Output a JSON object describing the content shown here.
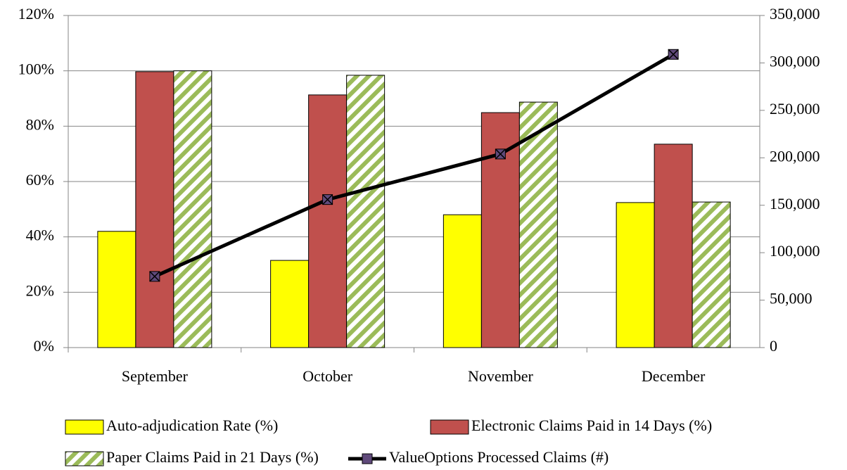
{
  "chart_data": {
    "type": "bar",
    "categories": [
      "September",
      "October",
      "November",
      "December"
    ],
    "series": [
      {
        "name": "Auto-adjudication Rate (%)",
        "type": "bar",
        "color": "#ffff00",
        "values": [
          42,
          31.5,
          48,
          52.4
        ]
      },
      {
        "name": "Electronic Claims Paid in 14 Days (%)",
        "type": "bar",
        "color": "#c0504d",
        "values": [
          99.7,
          91.3,
          84.9,
          73.5
        ]
      },
      {
        "name": "Paper Claims Paid in 21 Days (%)",
        "type": "bar",
        "color": "#9bbb59",
        "pattern": "diagonal-stripes",
        "values": [
          100,
          98.4,
          88.7,
          52.6
        ]
      },
      {
        "name": "ValueOptions Processed Claims (#)",
        "type": "line",
        "axis": "y2",
        "color": "#000000",
        "marker_color": "#604a7b",
        "values": [
          75000,
          156000,
          204000,
          309000
        ]
      }
    ],
    "ylim": [
      0,
      120
    ],
    "yticks": [
      {
        "value": 0,
        "label": "0%"
      },
      {
        "value": 20,
        "label": "20%"
      },
      {
        "value": 40,
        "label": "40%"
      },
      {
        "value": 60,
        "label": "60%"
      },
      {
        "value": 80,
        "label": "80%"
      },
      {
        "value": 100,
        "label": "100%"
      },
      {
        "value": 120,
        "label": "120%"
      }
    ],
    "y2lim": [
      0,
      350000
    ],
    "y2ticks": [
      0,
      {
        "value": 50000,
        "label": "50,000"
      },
      {
        "value": 100000,
        "label": "100,000"
      },
      {
        "value": 150000,
        "label": "150,000"
      },
      {
        "value": 200000,
        "label": "200,000"
      },
      {
        "value": 250000,
        "label": "250,000"
      },
      {
        "value": 300000,
        "label": "300,000"
      },
      {
        "value": 350000,
        "label": "350,000"
      }
    ],
    "grid": true,
    "legend": "bottom"
  }
}
